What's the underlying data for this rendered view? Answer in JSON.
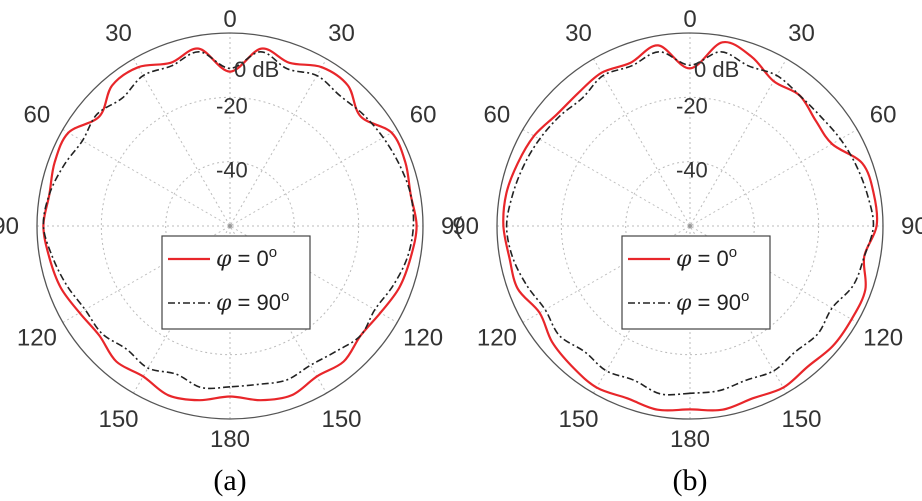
{
  "chart_data": [
    {
      "type": "polar-line",
      "caption": "(a)",
      "radial_unit_label": "0 dB",
      "radial_ticks": [
        "-20",
        "-40"
      ],
      "angle_ticks": [
        {
          "angle": 0,
          "side": "top",
          "label": "0"
        },
        {
          "angle": 30,
          "side": "left",
          "label": "30"
        },
        {
          "angle": 30,
          "side": "right",
          "label": "30"
        },
        {
          "angle": 60,
          "side": "left",
          "label": "60"
        },
        {
          "angle": 60,
          "side": "right",
          "label": "60"
        },
        {
          "angle": 90,
          "side": "left",
          "label": "90"
        },
        {
          "angle": 90,
          "side": "right",
          "label": "9("
        },
        {
          "angle": 120,
          "side": "left",
          "label": "120"
        },
        {
          "angle": 120,
          "side": "right",
          "label": "120"
        },
        {
          "angle": 150,
          "side": "left",
          "label": "150"
        },
        {
          "angle": 150,
          "side": "right",
          "label": "150"
        },
        {
          "angle": 180,
          "side": "bottom",
          "label": "180"
        }
      ],
      "r_range_db": [
        -60,
        0
      ],
      "series": [
        {
          "name": "φ = 0°",
          "legend_prefix": "φ",
          "legend_rest": " = 0",
          "legend_sup": "o",
          "color": "#e8262a",
          "dash": "solid",
          "theta": [
            -180,
            -170,
            -160,
            -150,
            -140,
            -130,
            -120,
            -110,
            -100,
            -90,
            -80,
            -70,
            -60,
            -50,
            -40,
            -30,
            -20,
            -10,
            0,
            10,
            20,
            30,
            40,
            50,
            60,
            70,
            80,
            90,
            100,
            110,
            120,
            130,
            140,
            150,
            160,
            170
          ],
          "db": [
            -7,
            -5,
            -4,
            -6,
            -5,
            -7,
            -6,
            -4,
            -3,
            -2,
            -3,
            -2,
            -2,
            -7,
            -3,
            -3,
            -6,
            -4,
            -12,
            -4,
            -6,
            -3,
            -3,
            -7,
            -2,
            -2,
            -3,
            -2,
            -3,
            -4,
            -6,
            -7,
            -5,
            -6,
            -4,
            -5
          ]
        },
        {
          "name": "φ = 90°",
          "legend_prefix": "φ",
          "legend_rest": " = 90",
          "legend_sup": "o",
          "color": "#222222",
          "dash": "dashdot",
          "theta": [
            -180,
            -170,
            -160,
            -150,
            -140,
            -130,
            -120,
            -110,
            -100,
            -90,
            -80,
            -70,
            -60,
            -50,
            -40,
            -30,
            -20,
            -10,
            0,
            10,
            20,
            30,
            40,
            50,
            60,
            70,
            80,
            90,
            100,
            110,
            120,
            130,
            140,
            150,
            160,
            170
          ],
          "db": [
            -10,
            -9,
            -11,
            -9,
            -10,
            -8,
            -8,
            -6,
            -4,
            -2,
            -3,
            -5,
            -7,
            -6,
            -8,
            -6,
            -7,
            -5,
            -11,
            -5,
            -8,
            -6,
            -7,
            -6,
            -5,
            -4,
            -3,
            -3,
            -4,
            -6,
            -8,
            -7,
            -9,
            -10,
            -9,
            -10
          ]
        }
      ]
    },
    {
      "type": "polar-line",
      "caption": "(b)",
      "radial_unit_label": "0 dB",
      "radial_ticks": [
        "-20",
        "-40"
      ],
      "angle_ticks": [
        {
          "angle": 0,
          "side": "top",
          "label": "0"
        },
        {
          "angle": 30,
          "side": "left",
          "label": "30"
        },
        {
          "angle": 30,
          "side": "right",
          "label": "30"
        },
        {
          "angle": 60,
          "side": "left",
          "label": "60"
        },
        {
          "angle": 60,
          "side": "right",
          "label": "60"
        },
        {
          "angle": 90,
          "side": "left",
          "label": "90"
        },
        {
          "angle": 90,
          "side": "right",
          "label": "90"
        },
        {
          "angle": 120,
          "side": "left",
          "label": "120"
        },
        {
          "angle": 120,
          "side": "right",
          "label": "120"
        },
        {
          "angle": 150,
          "side": "left",
          "label": "150"
        },
        {
          "angle": 150,
          "side": "right",
          "label": "150"
        },
        {
          "angle": 180,
          "side": "bottom",
          "label": "180"
        }
      ],
      "r_range_db": [
        -60,
        0
      ],
      "series": [
        {
          "name": "φ = 0°",
          "legend_prefix": "φ",
          "legend_rest": " = 0",
          "legend_sup": "o",
          "color": "#e8262a",
          "dash": "solid",
          "theta": [
            -180,
            -170,
            -160,
            -150,
            -140,
            -130,
            -120,
            -110,
            -100,
            -90,
            -80,
            -70,
            -60,
            -50,
            -40,
            -30,
            -20,
            -10,
            0,
            10,
            20,
            30,
            40,
            50,
            60,
            70,
            80,
            90,
            100,
            110,
            120,
            130,
            140,
            150,
            160,
            170
          ],
          "db": [
            -3,
            -2,
            -3,
            -2,
            -3,
            -4,
            -6,
            -3,
            -3,
            -2,
            -2,
            -3,
            -4,
            -6,
            -6,
            -5,
            -6,
            -3,
            -11,
            -2,
            -4,
            -8,
            -7,
            -9,
            -9,
            -3,
            -2,
            -2,
            -5,
            -2,
            -2,
            -2,
            -3,
            -2,
            -3,
            -2
          ]
        },
        {
          "name": "φ = 90°",
          "legend_prefix": "φ",
          "legend_rest": " = 90",
          "legend_sup": "o",
          "color": "#222222",
          "dash": "dashdot",
          "theta": [
            -180,
            -170,
            -160,
            -150,
            -140,
            -130,
            -120,
            -110,
            -100,
            -90,
            -80,
            -70,
            -60,
            -50,
            -40,
            -30,
            -20,
            -10,
            0,
            10,
            20,
            30,
            40,
            50,
            60,
            70,
            80,
            90,
            100,
            110,
            120,
            130,
            140,
            150,
            160,
            170
          ],
          "db": [
            -8,
            -7,
            -9,
            -8,
            -9,
            -7,
            -8,
            -6,
            -4,
            -3,
            -4,
            -5,
            -6,
            -7,
            -8,
            -6,
            -7,
            -5,
            -10,
            -5,
            -7,
            -6,
            -7,
            -7,
            -6,
            -5,
            -4,
            -3,
            -5,
            -6,
            -9,
            -8,
            -9,
            -8,
            -9,
            -8
          ]
        }
      ]
    }
  ]
}
